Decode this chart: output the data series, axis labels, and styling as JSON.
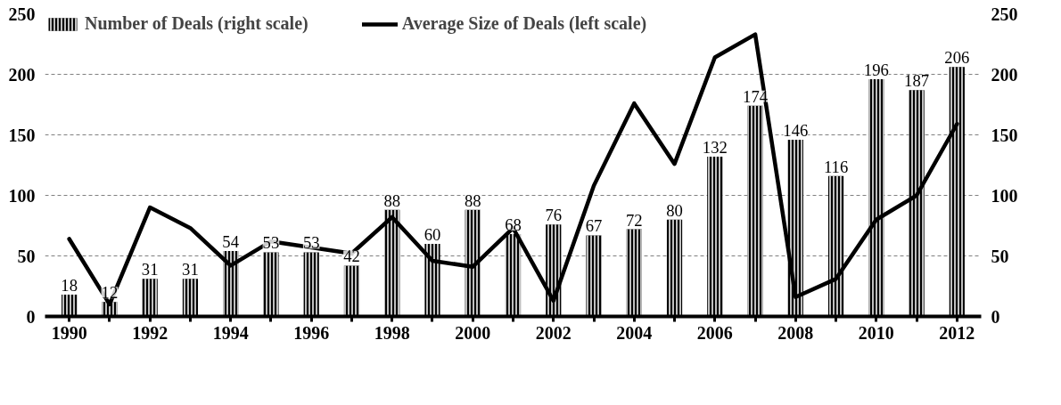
{
  "chart_data": {
    "type": "bar",
    "categories": [
      "1990",
      null,
      "1992",
      null,
      "1994",
      null,
      "1996",
      null,
      "1998",
      null,
      "2000",
      null,
      "2002",
      null,
      "2004",
      null,
      "2006",
      null,
      "2008",
      null,
      "2010",
      null,
      "2012"
    ],
    "series": [
      {
        "name": "Number of Deals (right scale)",
        "axis": "y2",
        "color": "#000000",
        "values": [
          18,
          12,
          31,
          31,
          54,
          53,
          53,
          42,
          88,
          60,
          88,
          68,
          76,
          67,
          72,
          80,
          132,
          174,
          146,
          116,
          196,
          187,
          206
        ],
        "value_labels": [
          "18",
          "12",
          "31",
          "31",
          "54",
          "53",
          "53",
          "42",
          "88",
          "60",
          "88",
          "68",
          "76",
          "67",
          "72",
          "80",
          "132",
          "174",
          "146",
          "116",
          "196",
          "187",
          "206"
        ]
      },
      {
        "name": "Average Size of Deals (left scale)",
        "type": "line",
        "color": "#000000",
        "values": [
          64,
          10,
          90,
          73,
          42,
          62,
          57,
          52,
          82,
          46,
          41,
          73,
          13,
          108,
          176,
          126,
          214,
          233,
          16,
          31,
          80,
          100,
          159
        ]
      }
    ],
    "ylim": [
      0,
      250
    ],
    "yticks": [
      0,
      50,
      100,
      150,
      200,
      250
    ],
    "y2lim": [
      0,
      250
    ],
    "y2ticks": [
      0,
      50,
      100,
      150,
      200,
      250
    ],
    "grid": "y",
    "legend": "top left",
    "line_style": "solid",
    "marker": "none"
  }
}
